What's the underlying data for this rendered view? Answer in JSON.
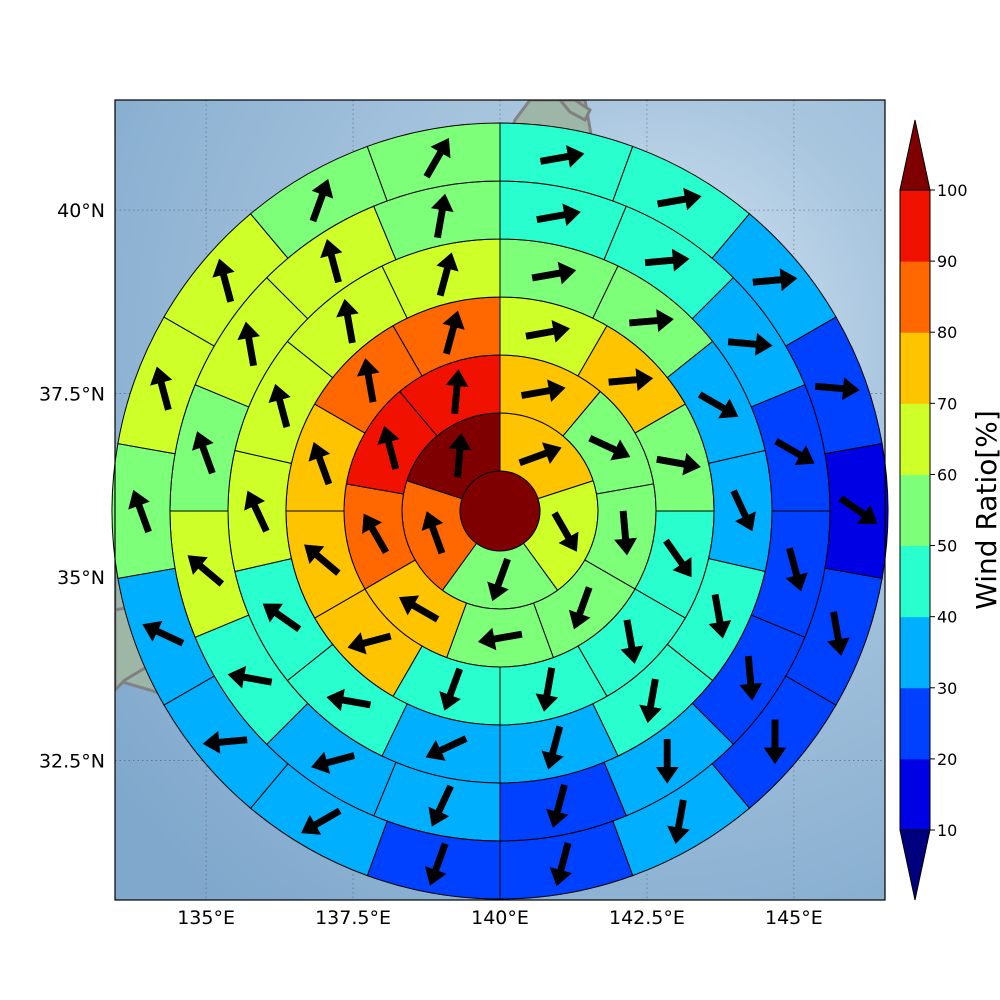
{
  "chart_data": {
    "type": "polar-sector-map",
    "title": "",
    "colorbar_label": "Wind Ratio[%]",
    "colorbar_ticks": [
      "10",
      "20",
      "30",
      "40",
      "50",
      "60",
      "70",
      "80",
      "90",
      "100"
    ],
    "color_levels": [
      {
        "min": 0,
        "max": 10,
        "color": "#00007f"
      },
      {
        "min": 10,
        "max": 20,
        "color": "#0000e5"
      },
      {
        "min": 20,
        "max": 30,
        "color": "#0040ff"
      },
      {
        "min": 30,
        "max": 40,
        "color": "#00b0ff"
      },
      {
        "min": 40,
        "max": 50,
        "color": "#29ffce"
      },
      {
        "min": 50,
        "max": 60,
        "color": "#7dff7a"
      },
      {
        "min": 60,
        "max": 70,
        "color": "#ceff29"
      },
      {
        "min": 70,
        "max": 80,
        "color": "#ffc400"
      },
      {
        "min": 80,
        "max": 90,
        "color": "#ff6800"
      },
      {
        "min": 90,
        "max": 100,
        "color": "#f01100"
      },
      {
        "min": 100,
        "max": 110,
        "color": "#7f0000"
      }
    ],
    "x_ticks": [
      {
        "value": 135.0,
        "label": "135°E"
      },
      {
        "value": 137.5,
        "label": "137.5°E"
      },
      {
        "value": 140.0,
        "label": "140°E"
      },
      {
        "value": 142.5,
        "label": "142.5°E"
      },
      {
        "value": 145.0,
        "label": "145°E"
      }
    ],
    "y_ticks": [
      {
        "value": 32.5,
        "label": "32.5°N"
      },
      {
        "value": 35.0,
        "label": "35°N"
      },
      {
        "value": 37.5,
        "label": "37.5°N"
      },
      {
        "value": 40.0,
        "label": "40°N"
      }
    ],
    "lon_range": [
      133.45,
      146.55
    ],
    "lat_range": [
      30.6,
      41.5
    ],
    "center": {
      "lon": 140.0,
      "lat": 35.9
    },
    "center_cell": {
      "value": 105,
      "arrow": null
    },
    "rings": [
      {
        "sectors": [
          {
            "value": 75,
            "arrow": 70
          },
          {
            "value": 65,
            "arrow": 150
          },
          {
            "value": 55,
            "arrow": 200
          },
          {
            "value": 85,
            "arrow": 340
          },
          {
            "value": 105,
            "arrow": 5
          }
        ]
      },
      {
        "sectors": [
          {
            "value": 75,
            "arrow": 80
          },
          {
            "value": 55,
            "arrow": 115
          },
          {
            "value": 55,
            "arrow": 175
          },
          {
            "value": 55,
            "arrow": 200
          },
          {
            "value": 55,
            "arrow": 260
          },
          {
            "value": 75,
            "arrow": 300
          },
          {
            "value": 85,
            "arrow": 330
          },
          {
            "value": 95,
            "arrow": 345
          },
          {
            "value": 95,
            "arrow": 5
          }
        ]
      },
      {
        "sectors": [
          {
            "value": 65,
            "arrow": 80
          },
          {
            "value": 75,
            "arrow": 85
          },
          {
            "value": 55,
            "arrow": 100
          },
          {
            "value": 45,
            "arrow": 145
          },
          {
            "value": 45,
            "arrow": 170
          },
          {
            "value": 45,
            "arrow": 190
          },
          {
            "value": 45,
            "arrow": 200
          },
          {
            "value": 75,
            "arrow": 255
          },
          {
            "value": 75,
            "arrow": 310
          },
          {
            "value": 75,
            "arrow": 340
          },
          {
            "value": 85,
            "arrow": 350
          },
          {
            "value": 85,
            "arrow": 15
          }
        ]
      },
      {
        "sectors": [
          {
            "value": 55,
            "arrow": 80
          },
          {
            "value": 55,
            "arrow": 85
          },
          {
            "value": 35,
            "arrow": 120
          },
          {
            "value": 35,
            "arrow": 155
          },
          {
            "value": 45,
            "arrow": 170
          },
          {
            "value": 45,
            "arrow": 190
          },
          {
            "value": 35,
            "arrow": 195
          },
          {
            "value": 35,
            "arrow": 245
          },
          {
            "value": 45,
            "arrow": 280
          },
          {
            "value": 45,
            "arrow": 305
          },
          {
            "value": 65,
            "arrow": 335
          },
          {
            "value": 65,
            "arrow": 345
          },
          {
            "value": 65,
            "arrow": 350
          },
          {
            "value": 65,
            "arrow": 15
          }
        ]
      },
      {
        "sectors": [
          {
            "value": 45,
            "arrow": 80
          },
          {
            "value": 45,
            "arrow": 85
          },
          {
            "value": 35,
            "arrow": 95
          },
          {
            "value": 25,
            "arrow": 120
          },
          {
            "value": 25,
            "arrow": 165
          },
          {
            "value": 25,
            "arrow": 175
          },
          {
            "value": 35,
            "arrow": 180
          },
          {
            "value": 25,
            "arrow": 195
          },
          {
            "value": 35,
            "arrow": 205
          },
          {
            "value": 35,
            "arrow": 255
          },
          {
            "value": 45,
            "arrow": 280
          },
          {
            "value": 65,
            "arrow": 310
          },
          {
            "value": 55,
            "arrow": 340
          },
          {
            "value": 65,
            "arrow": 350
          },
          {
            "value": 65,
            "arrow": 345
          },
          {
            "value": 55,
            "arrow": 10
          }
        ]
      },
      {
        "sectors": [
          {
            "value": 45,
            "arrow": 80
          },
          {
            "value": 45,
            "arrow": 80
          },
          {
            "value": 35,
            "arrow": 85
          },
          {
            "value": 25,
            "arrow": 95
          },
          {
            "value": 15,
            "arrow": 125
          },
          {
            "value": 25,
            "arrow": 170
          },
          {
            "value": 25,
            "arrow": 180
          },
          {
            "value": 35,
            "arrow": 190
          },
          {
            "value": 25,
            "arrow": 195
          },
          {
            "value": 25,
            "arrow": 200
          },
          {
            "value": 35,
            "arrow": 240
          },
          {
            "value": 35,
            "arrow": 265
          },
          {
            "value": 35,
            "arrow": 295
          },
          {
            "value": 55,
            "arrow": 340
          },
          {
            "value": 65,
            "arrow": 345
          },
          {
            "value": 65,
            "arrow": 345
          },
          {
            "value": 55,
            "arrow": 20
          },
          {
            "value": 55,
            "arrow": 30
          }
        ]
      }
    ]
  }
}
